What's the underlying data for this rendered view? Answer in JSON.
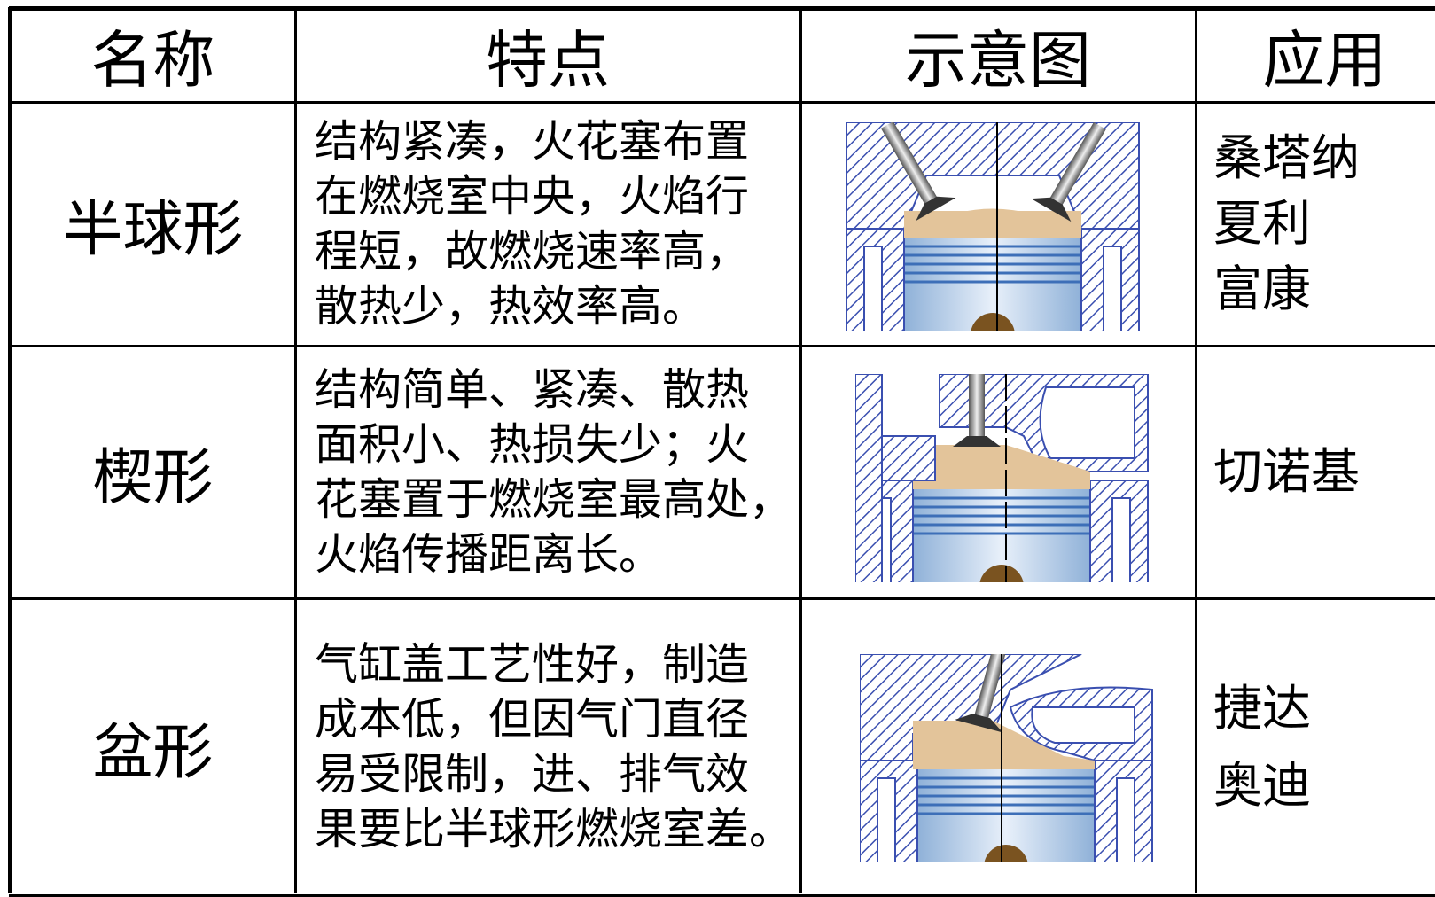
{
  "table": {
    "header": [
      "名称",
      "特点",
      "示意图",
      "应用"
    ],
    "rows": [
      {
        "name": "半球形",
        "features": [
          "结构紧凑，火花塞布置",
          "在燃烧室中央，火焰行",
          "程短，故燃烧速率高，",
          "散热少，热效率高。"
        ],
        "applications": [
          "桑塔纳",
          "夏利",
          "富康"
        ]
      },
      {
        "name": "楔形",
        "features": [
          "结构简单、紧凑、散热",
          "面积小、热损失少；火",
          "花塞置于燃烧室最高处，",
          "火焰传播距离长。"
        ],
        "applications": [
          "切诺基"
        ]
      },
      {
        "name": "盆形",
        "features": [
          "气缸盖工艺性好，制造",
          "成本低，但因气门直径",
          "易受限制，进、排气效",
          "果要比半球形燃烧室差。"
        ],
        "applications": [
          "捷达",
          "奥迪"
        ]
      }
    ]
  }
}
